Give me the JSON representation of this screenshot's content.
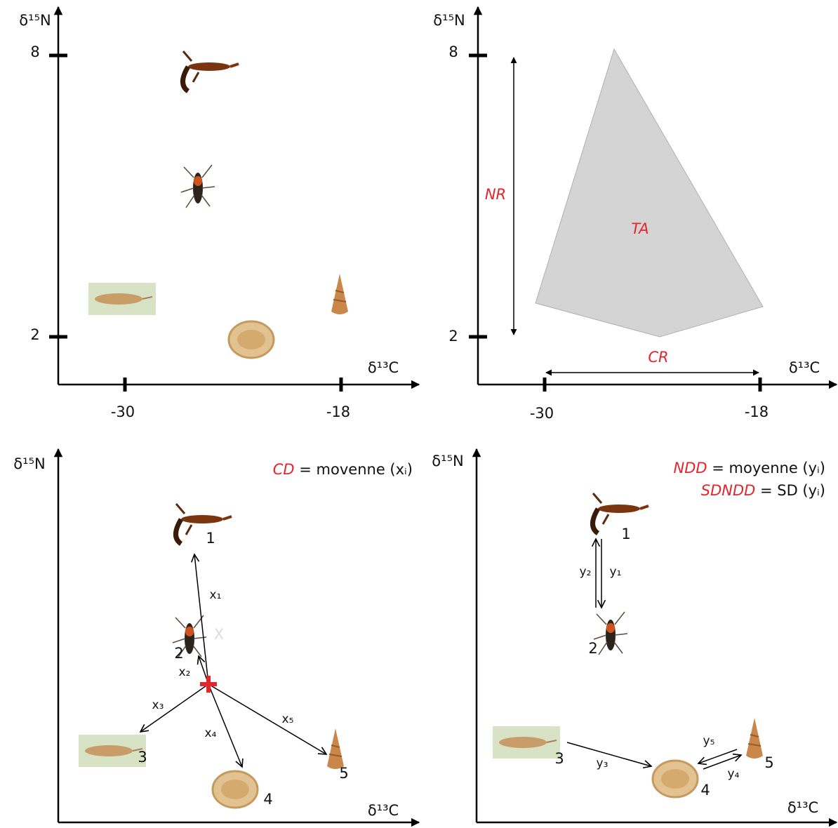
{
  "panels": [
    {
      "y_axis_label": "δ¹⁵N",
      "x_axis_label": "δ¹³C",
      "y_ticks": [
        "8",
        "2"
      ],
      "x_ticks": [
        "-30",
        "-18"
      ]
    },
    {
      "y_axis_label": "δ¹⁵N",
      "x_axis_label": "δ¹³C",
      "y_ticks": [
        "8",
        "2"
      ],
      "x_ticks": [
        "-30",
        "-18"
      ],
      "nitrogen_range": "NR",
      "total_area": "TA",
      "carbon_range": "CR"
    },
    {
      "y_axis_label": "δ¹⁵N",
      "x_axis_label": "δ¹³C",
      "formula": {
        "metric": "CD",
        "definition": "= movenne (xᵢ)"
      },
      "specimens": [
        "1",
        "2",
        "3",
        "4",
        "5"
      ],
      "distances": [
        "x₁",
        "x₂",
        "x₃",
        "x₄",
        "x₅"
      ],
      "centroid_label": "X"
    },
    {
      "y_axis_label": "δ¹⁵N",
      "x_axis_label": "δ¹³C",
      "formulas": [
        {
          "metric": "NDD",
          "definition": "= moyenne (yᵢ)"
        },
        {
          "metric": "SDNDD",
          "definition": "= SD (yᵢ)"
        }
      ],
      "specimens": [
        "1",
        "2",
        "3",
        "4",
        "5"
      ],
      "distances": [
        "y₁",
        "y₂",
        "y₃",
        "y₄",
        "y₅"
      ]
    }
  ]
}
